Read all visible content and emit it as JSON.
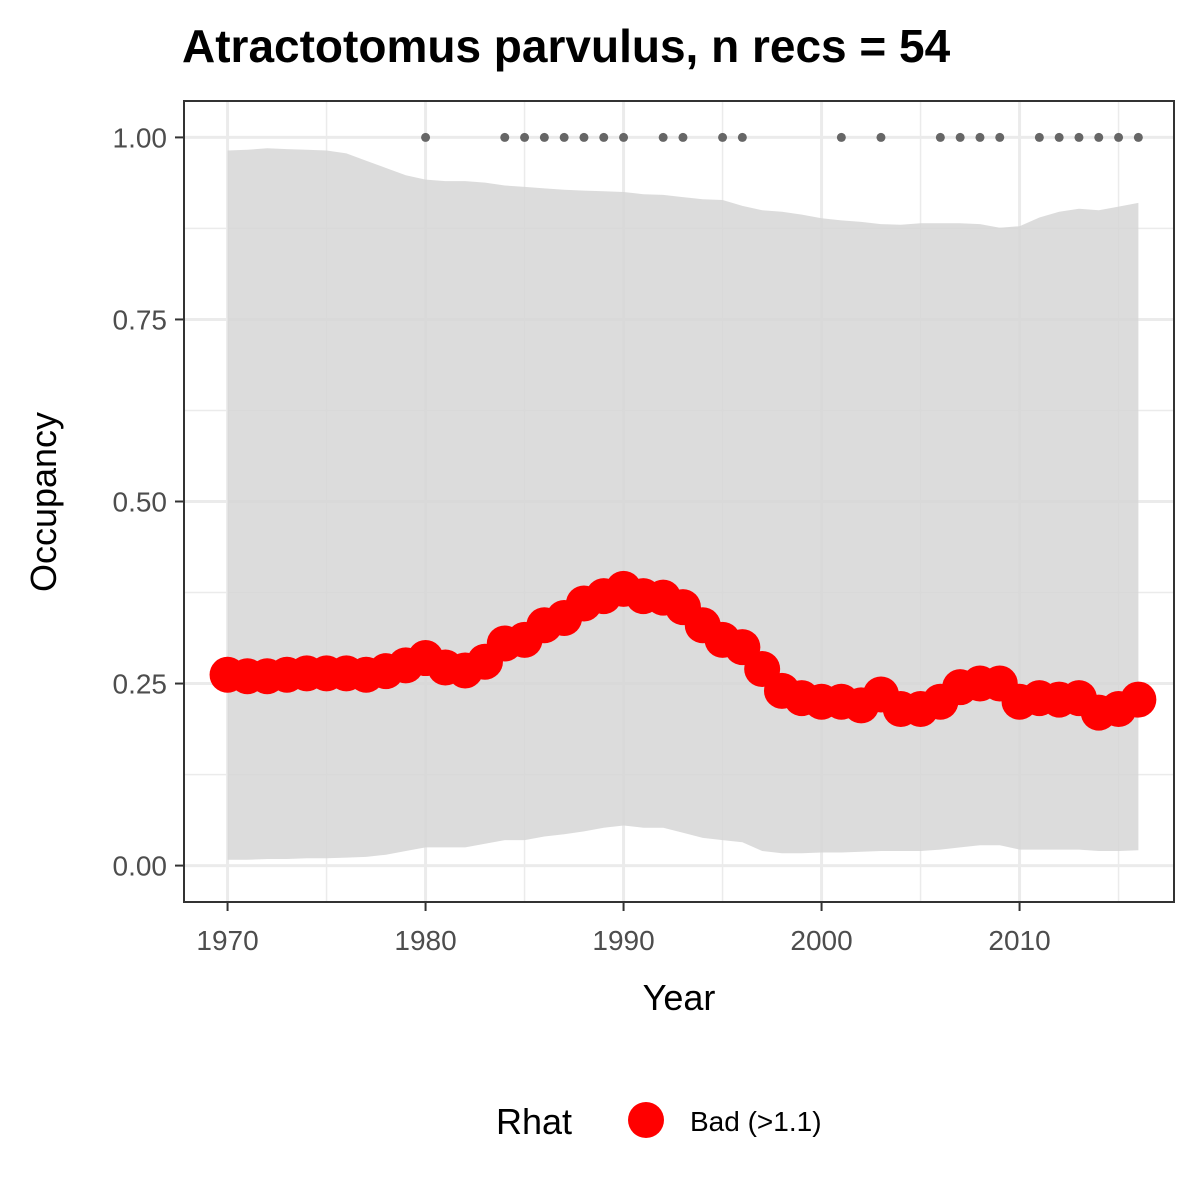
{
  "chart_data": {
    "type": "line",
    "title": "Atractotomus parvulus, n recs = 54",
    "xlabel": "Year",
    "ylabel": "Occupancy",
    "xlim": [
      1967.8,
      2017.8
    ],
    "ylim": [
      -0.05,
      1.05
    ],
    "x_ticks": [
      1970,
      1980,
      1990,
      2000,
      2010
    ],
    "x_tick_labels": [
      "1970",
      "1980",
      "1990",
      "2000",
      "2010"
    ],
    "y_ticks": [
      0,
      0.25,
      0.5,
      0.75,
      1
    ],
    "y_tick_labels": [
      "0.00",
      "0.25",
      "0.50",
      "0.75",
      "1.00"
    ],
    "grid": true,
    "legend_position": "bottom",
    "legend": {
      "title": "Rhat",
      "items": [
        {
          "label": "Bad (>1.1)",
          "color": "#ff0000"
        }
      ]
    },
    "colors": {
      "points": "#ff0000",
      "ribbon": "#d6d6d6",
      "records": "#666666",
      "panel_border": "#333333",
      "grid": "#ebebeb"
    },
    "x": [
      1970,
      1971,
      1972,
      1973,
      1974,
      1975,
      1976,
      1977,
      1978,
      1979,
      1980,
      1981,
      1982,
      1983,
      1984,
      1985,
      1986,
      1987,
      1988,
      1989,
      1990,
      1991,
      1992,
      1993,
      1994,
      1995,
      1996,
      1997,
      1998,
      1999,
      2000,
      2001,
      2002,
      2003,
      2004,
      2005,
      2006,
      2007,
      2008,
      2009,
      2010,
      2011,
      2012,
      2013,
      2014,
      2015,
      2016
    ],
    "series": [
      {
        "values": [
          0.262,
          0.26,
          0.26,
          0.262,
          0.264,
          0.264,
          0.264,
          0.262,
          0.267,
          0.275,
          0.285,
          0.272,
          0.268,
          0.28,
          0.305,
          0.31,
          0.33,
          0.34,
          0.36,
          0.37,
          0.38,
          0.37,
          0.368,
          0.355,
          0.33,
          0.31,
          0.3,
          0.27,
          0.24,
          0.23,
          0.225,
          0.225,
          0.22,
          0.235,
          0.215,
          0.215,
          0.225,
          0.245,
          0.25,
          0.25,
          0.225,
          0.23,
          0.228,
          0.23,
          0.21,
          0.215,
          0.228
        ],
        "lower": [
          0.008,
          0.008,
          0.009,
          0.009,
          0.01,
          0.01,
          0.011,
          0.012,
          0.015,
          0.02,
          0.025,
          0.025,
          0.025,
          0.03,
          0.035,
          0.035,
          0.04,
          0.043,
          0.047,
          0.052,
          0.055,
          0.052,
          0.052,
          0.045,
          0.038,
          0.035,
          0.032,
          0.02,
          0.017,
          0.017,
          0.018,
          0.018,
          0.019,
          0.02,
          0.02,
          0.02,
          0.022,
          0.025,
          0.028,
          0.028,
          0.022,
          0.022,
          0.022,
          0.022,
          0.02,
          0.02,
          0.021
        ],
        "upper": [
          0.982,
          0.983,
          0.985,
          0.984,
          0.983,
          0.982,
          0.978,
          0.968,
          0.958,
          0.948,
          0.942,
          0.94,
          0.94,
          0.938,
          0.934,
          0.932,
          0.93,
          0.928,
          0.927,
          0.926,
          0.925,
          0.922,
          0.921,
          0.918,
          0.915,
          0.914,
          0.906,
          0.9,
          0.898,
          0.894,
          0.889,
          0.886,
          0.884,
          0.881,
          0.88,
          0.882,
          0.882,
          0.882,
          0.881,
          0.876,
          0.878,
          0.89,
          0.898,
          0.902,
          0.9,
          0.905,
          0.91
        ]
      }
    ],
    "record_years": [
      1980,
      1984,
      1985,
      1986,
      1987,
      1988,
      1989,
      1990,
      1992,
      1993,
      1995,
      1996,
      2001,
      2003,
      2006,
      2007,
      2008,
      2009,
      2011,
      2012,
      2013,
      2014,
      2015,
      2016
    ],
    "record_y": 1.0
  }
}
